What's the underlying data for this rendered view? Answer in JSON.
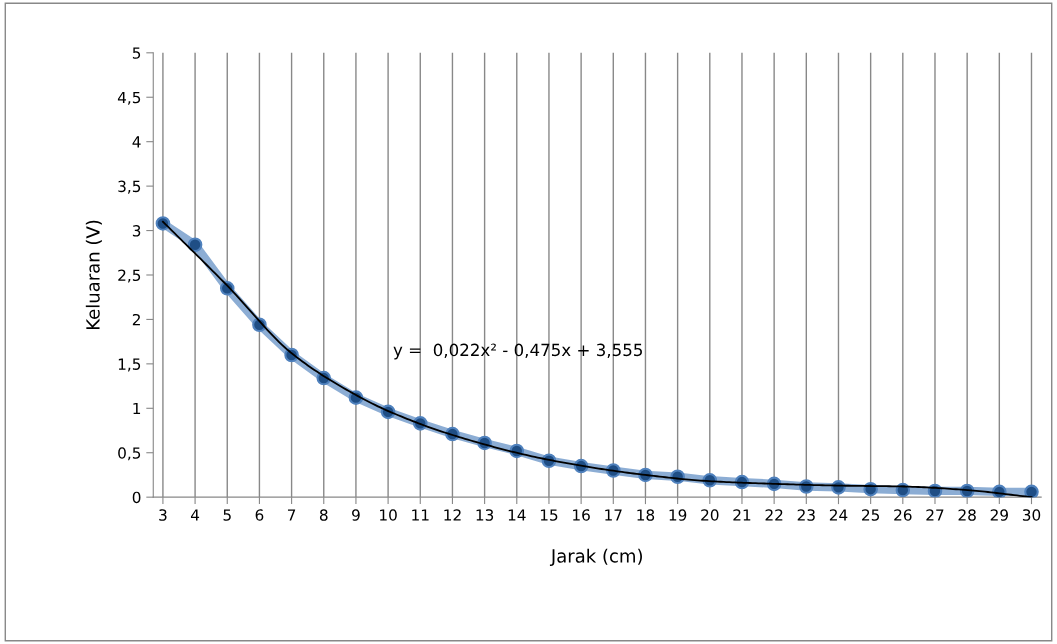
{
  "chart_data": {
    "type": "line",
    "xlabel": "Jarak (cm)",
    "ylabel": "Keluaran (V)",
    "categories": [
      "3",
      "4",
      "5",
      "6",
      "7",
      "8",
      "9",
      "10",
      "11",
      "12",
      "13",
      "14",
      "15",
      "16",
      "17",
      "18",
      "19",
      "20",
      "21",
      "22",
      "23",
      "24",
      "25",
      "26",
      "27",
      "28",
      "29",
      "30"
    ],
    "series": [
      {
        "color": "#4f81bd",
        "marker": "circle",
        "values": [
          3.08,
          2.84,
          2.35,
          1.94,
          1.6,
          1.34,
          1.12,
          0.96,
          0.83,
          0.71,
          0.61,
          0.52,
          0.41,
          0.35,
          0.3,
          0.25,
          0.23,
          0.19,
          0.17,
          0.15,
          0.12,
          0.11,
          0.09,
          0.08,
          0.07,
          0.07,
          0.06,
          0.06
        ]
      },
      {
        "type": "line",
        "color": "#000000",
        "marker": "none",
        "x": [
          "3",
          "5",
          "7",
          "9",
          "10",
          "12",
          "15",
          "18",
          "20",
          "22",
          "24",
          "26",
          "28",
          "30"
        ],
        "values": [
          3.1,
          2.38,
          1.62,
          1.15,
          0.97,
          0.7,
          0.42,
          0.25,
          0.18,
          0.15,
          0.13,
          0.12,
          0.08,
          0.0
        ]
      }
    ],
    "ylim": [
      0,
      5
    ],
    "yticks": [
      0,
      {
        "value": 0.5,
        "label": "0,5"
      },
      1,
      {
        "value": 1.5,
        "label": "1,5"
      },
      2,
      {
        "value": 2.5,
        "label": "2,5"
      },
      3,
      {
        "value": 3.5,
        "label": "3,5"
      },
      4,
      {
        "value": 4.5,
        "label": "4,5"
      },
      5
    ],
    "grid": "x",
    "legend": false,
    "annotations": [
      "y =  0,022x² - 0,475x + 3,555"
    ]
  }
}
